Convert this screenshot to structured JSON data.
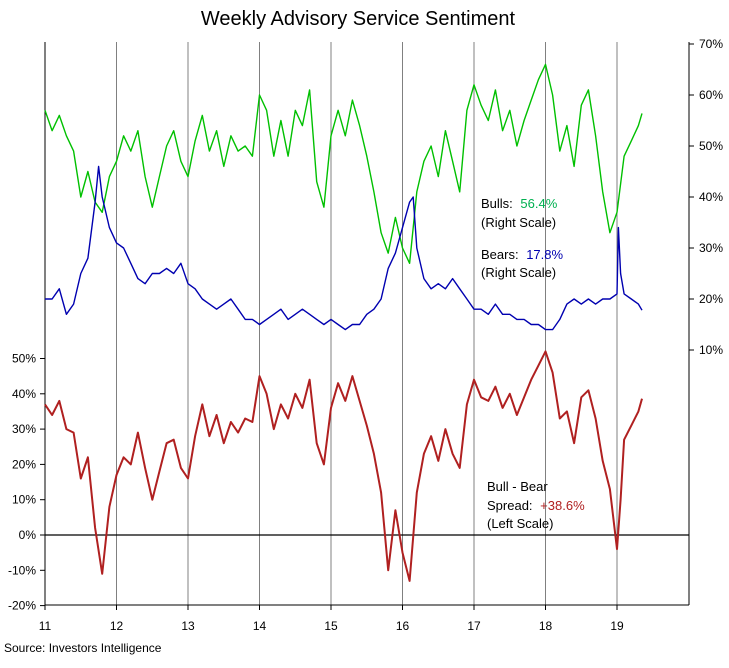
{
  "title": "Weekly Advisory Service Sentiment",
  "source": "Source:  Investors  Intelligence",
  "colors": {
    "bulls": "#00C000",
    "bears": "#0000B0",
    "spread": "#B02020",
    "grid": "#808080",
    "axis": "#000000"
  },
  "annotations": {
    "bulls": {
      "label": "Bulls:",
      "value": "56.4%",
      "scale": "(Right Scale)"
    },
    "bears": {
      "label": "Bears:",
      "value": "17.8%",
      "scale": "(Right Scale)"
    },
    "spread": {
      "line1": "Bull - Bear",
      "label": "Spread:",
      "value": "+38.6%",
      "scale": "(Left Scale)"
    }
  },
  "chart_data": {
    "type": "line",
    "title": "Weekly Advisory Service Sentiment",
    "x_tick_labels": [
      "11",
      "12",
      "13",
      "14",
      "15",
      "16",
      "17",
      "18",
      "19"
    ],
    "x_range": [
      2011.0,
      2020.0
    ],
    "right_axis": {
      "ticks": [
        "10%",
        "20%",
        "30%",
        "40%",
        "50%",
        "60%",
        "70%"
      ],
      "range": [
        10,
        70
      ]
    },
    "left_axis": {
      "ticks": [
        "-20%",
        "-10%",
        "0%",
        "10%",
        "20%",
        "30%",
        "40%",
        "50%"
      ],
      "range": [
        -20,
        50
      ]
    },
    "grid": "vertical at year boundaries",
    "series": [
      {
        "key": "bulls",
        "name": "Bulls",
        "axis": "right",
        "points": [
          [
            2011.0,
            57
          ],
          [
            2011.1,
            53
          ],
          [
            2011.2,
            56
          ],
          [
            2011.3,
            52
          ],
          [
            2011.4,
            49
          ],
          [
            2011.5,
            40
          ],
          [
            2011.6,
            45
          ],
          [
            2011.7,
            39
          ],
          [
            2011.8,
            37
          ],
          [
            2011.9,
            44
          ],
          [
            2012.0,
            47
          ],
          [
            2012.1,
            52
          ],
          [
            2012.2,
            49
          ],
          [
            2012.3,
            53
          ],
          [
            2012.4,
            44
          ],
          [
            2012.5,
            38
          ],
          [
            2012.6,
            44
          ],
          [
            2012.7,
            50
          ],
          [
            2012.8,
            53
          ],
          [
            2012.9,
            47
          ],
          [
            2013.0,
            44
          ],
          [
            2013.1,
            51
          ],
          [
            2013.2,
            56
          ],
          [
            2013.3,
            49
          ],
          [
            2013.4,
            53
          ],
          [
            2013.5,
            46
          ],
          [
            2013.6,
            52
          ],
          [
            2013.7,
            49
          ],
          [
            2013.8,
            50
          ],
          [
            2013.9,
            48
          ],
          [
            2014.0,
            60
          ],
          [
            2014.1,
            57
          ],
          [
            2014.2,
            48
          ],
          [
            2014.3,
            55
          ],
          [
            2014.4,
            48
          ],
          [
            2014.5,
            57
          ],
          [
            2014.6,
            54
          ],
          [
            2014.7,
            61
          ],
          [
            2014.8,
            43
          ],
          [
            2014.9,
            38
          ],
          [
            2015.0,
            52
          ],
          [
            2015.1,
            57
          ],
          [
            2015.2,
            52
          ],
          [
            2015.3,
            59
          ],
          [
            2015.4,
            54
          ],
          [
            2015.5,
            48
          ],
          [
            2015.6,
            41
          ],
          [
            2015.7,
            33
          ],
          [
            2015.8,
            29
          ],
          [
            2015.9,
            36
          ],
          [
            2016.0,
            30
          ],
          [
            2016.1,
            27
          ],
          [
            2016.2,
            41
          ],
          [
            2016.3,
            47
          ],
          [
            2016.4,
            50
          ],
          [
            2016.5,
            44
          ],
          [
            2016.6,
            53
          ],
          [
            2016.7,
            47
          ],
          [
            2016.8,
            41
          ],
          [
            2016.9,
            57
          ],
          [
            2017.0,
            62
          ],
          [
            2017.1,
            58
          ],
          [
            2017.2,
            55
          ],
          [
            2017.3,
            61
          ],
          [
            2017.4,
            53
          ],
          [
            2017.5,
            57
          ],
          [
            2017.6,
            50
          ],
          [
            2017.7,
            55
          ],
          [
            2017.8,
            59
          ],
          [
            2017.9,
            63
          ],
          [
            2018.0,
            66
          ],
          [
            2018.1,
            60
          ],
          [
            2018.2,
            49
          ],
          [
            2018.3,
            54
          ],
          [
            2018.4,
            46
          ],
          [
            2018.5,
            58
          ],
          [
            2018.6,
            61
          ],
          [
            2018.7,
            52
          ],
          [
            2018.8,
            41
          ],
          [
            2018.9,
            33
          ],
          [
            2019.0,
            37
          ],
          [
            2019.1,
            48
          ],
          [
            2019.2,
            51
          ],
          [
            2019.3,
            54
          ],
          [
            2019.35,
            56.4
          ]
        ]
      },
      {
        "key": "bears",
        "name": "Bears",
        "axis": "right",
        "points": [
          [
            2011.0,
            20
          ],
          [
            2011.1,
            20
          ],
          [
            2011.2,
            22
          ],
          [
            2011.3,
            17
          ],
          [
            2011.4,
            19
          ],
          [
            2011.5,
            25
          ],
          [
            2011.6,
            28
          ],
          [
            2011.7,
            39
          ],
          [
            2011.75,
            46
          ],
          [
            2011.8,
            40
          ],
          [
            2011.9,
            34
          ],
          [
            2012.0,
            31
          ],
          [
            2012.1,
            30
          ],
          [
            2012.2,
            27
          ],
          [
            2012.3,
            24
          ],
          [
            2012.4,
            23
          ],
          [
            2012.5,
            25
          ],
          [
            2012.6,
            25
          ],
          [
            2012.7,
            26
          ],
          [
            2012.8,
            25
          ],
          [
            2012.9,
            27
          ],
          [
            2013.0,
            23
          ],
          [
            2013.1,
            22
          ],
          [
            2013.2,
            20
          ],
          [
            2013.3,
            19
          ],
          [
            2013.4,
            18
          ],
          [
            2013.5,
            19
          ],
          [
            2013.6,
            20
          ],
          [
            2013.7,
            18
          ],
          [
            2013.8,
            16
          ],
          [
            2013.9,
            16
          ],
          [
            2014.0,
            15
          ],
          [
            2014.1,
            16
          ],
          [
            2014.2,
            17
          ],
          [
            2014.3,
            18
          ],
          [
            2014.4,
            16
          ],
          [
            2014.5,
            17
          ],
          [
            2014.6,
            18
          ],
          [
            2014.7,
            17
          ],
          [
            2014.8,
            16
          ],
          [
            2014.9,
            15
          ],
          [
            2015.0,
            16
          ],
          [
            2015.1,
            15
          ],
          [
            2015.2,
            14
          ],
          [
            2015.3,
            15
          ],
          [
            2015.4,
            15
          ],
          [
            2015.5,
            17
          ],
          [
            2015.6,
            18
          ],
          [
            2015.7,
            20
          ],
          [
            2015.8,
            26
          ],
          [
            2015.9,
            29
          ],
          [
            2016.0,
            34
          ],
          [
            2016.1,
            39
          ],
          [
            2016.15,
            40
          ],
          [
            2016.2,
            30
          ],
          [
            2016.3,
            24
          ],
          [
            2016.4,
            22
          ],
          [
            2016.5,
            23
          ],
          [
            2016.6,
            22
          ],
          [
            2016.7,
            24
          ],
          [
            2016.8,
            22
          ],
          [
            2016.9,
            20
          ],
          [
            2017.0,
            18
          ],
          [
            2017.1,
            18
          ],
          [
            2017.2,
            17
          ],
          [
            2017.3,
            19
          ],
          [
            2017.4,
            17
          ],
          [
            2017.5,
            17
          ],
          [
            2017.6,
            16
          ],
          [
            2017.7,
            16
          ],
          [
            2017.8,
            15
          ],
          [
            2017.9,
            15
          ],
          [
            2018.0,
            14
          ],
          [
            2018.1,
            14
          ],
          [
            2018.2,
            16
          ],
          [
            2018.3,
            19
          ],
          [
            2018.4,
            20
          ],
          [
            2018.5,
            19
          ],
          [
            2018.6,
            20
          ],
          [
            2018.7,
            19
          ],
          [
            2018.8,
            20
          ],
          [
            2018.9,
            20
          ],
          [
            2019.0,
            21
          ],
          [
            2019.02,
            34
          ],
          [
            2019.05,
            25
          ],
          [
            2019.1,
            21
          ],
          [
            2019.2,
            20
          ],
          [
            2019.3,
            19
          ],
          [
            2019.35,
            17.8
          ]
        ]
      },
      {
        "key": "spread",
        "name": "Bull - Bear Spread",
        "axis": "left",
        "points": [
          [
            2011.0,
            37
          ],
          [
            2011.1,
            34
          ],
          [
            2011.2,
            38
          ],
          [
            2011.3,
            30
          ],
          [
            2011.4,
            29
          ],
          [
            2011.5,
            16
          ],
          [
            2011.6,
            22
          ],
          [
            2011.7,
            2
          ],
          [
            2011.8,
            -11
          ],
          [
            2011.9,
            8
          ],
          [
            2012.0,
            17
          ],
          [
            2012.1,
            22
          ],
          [
            2012.2,
            20
          ],
          [
            2012.3,
            29
          ],
          [
            2012.4,
            19
          ],
          [
            2012.5,
            10
          ],
          [
            2012.6,
            18
          ],
          [
            2012.7,
            26
          ],
          [
            2012.8,
            27
          ],
          [
            2012.9,
            19
          ],
          [
            2013.0,
            16
          ],
          [
            2013.1,
            28
          ],
          [
            2013.2,
            37
          ],
          [
            2013.3,
            28
          ],
          [
            2013.4,
            34
          ],
          [
            2013.5,
            26
          ],
          [
            2013.6,
            32
          ],
          [
            2013.7,
            29
          ],
          [
            2013.8,
            33
          ],
          [
            2013.9,
            32
          ],
          [
            2014.0,
            45
          ],
          [
            2014.1,
            40
          ],
          [
            2014.2,
            30
          ],
          [
            2014.3,
            37
          ],
          [
            2014.4,
            33
          ],
          [
            2014.5,
            40
          ],
          [
            2014.6,
            36
          ],
          [
            2014.7,
            44
          ],
          [
            2014.8,
            26
          ],
          [
            2014.9,
            20
          ],
          [
            2015.0,
            36
          ],
          [
            2015.1,
            43
          ],
          [
            2015.2,
            38
          ],
          [
            2015.3,
            45
          ],
          [
            2015.4,
            38
          ],
          [
            2015.5,
            31
          ],
          [
            2015.6,
            23
          ],
          [
            2015.7,
            12
          ],
          [
            2015.8,
            -10
          ],
          [
            2015.9,
            7
          ],
          [
            2016.0,
            -5
          ],
          [
            2016.1,
            -13
          ],
          [
            2016.2,
            12
          ],
          [
            2016.3,
            23
          ],
          [
            2016.4,
            28
          ],
          [
            2016.5,
            21
          ],
          [
            2016.6,
            30
          ],
          [
            2016.7,
            23
          ],
          [
            2016.8,
            19
          ],
          [
            2016.9,
            37
          ],
          [
            2017.0,
            44
          ],
          [
            2017.1,
            39
          ],
          [
            2017.2,
            38
          ],
          [
            2017.3,
            42
          ],
          [
            2017.4,
            36
          ],
          [
            2017.5,
            40
          ],
          [
            2017.6,
            34
          ],
          [
            2017.7,
            39
          ],
          [
            2017.8,
            44
          ],
          [
            2017.9,
            48
          ],
          [
            2018.0,
            52
          ],
          [
            2018.1,
            46
          ],
          [
            2018.2,
            33
          ],
          [
            2018.3,
            35
          ],
          [
            2018.4,
            26
          ],
          [
            2018.5,
            39
          ],
          [
            2018.6,
            41
          ],
          [
            2018.7,
            33
          ],
          [
            2018.8,
            21
          ],
          [
            2018.9,
            13
          ],
          [
            2019.0,
            -4
          ],
          [
            2019.05,
            10
          ],
          [
            2019.1,
            27
          ],
          [
            2019.2,
            31
          ],
          [
            2019.3,
            35
          ],
          [
            2019.35,
            38.6
          ]
        ]
      }
    ]
  }
}
